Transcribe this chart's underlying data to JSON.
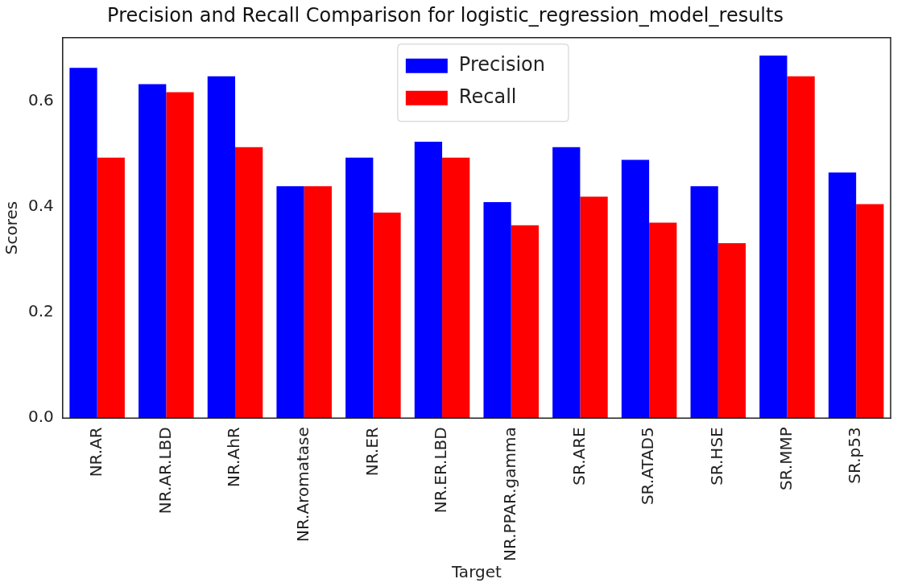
{
  "chart_data": {
    "type": "bar",
    "title": "Precision and Recall Comparison for logistic_regression_model_results",
    "xlabel": "Target",
    "ylabel": "Scores",
    "categories": [
      "NR.AR",
      "NR.AR.LBD",
      "NR.AhR",
      "NR.Aromatase",
      "NR.ER",
      "NR.ER.LBD",
      "NR.PPAR.gamma",
      "SR.ARE",
      "SR.ATAD5",
      "SR.HSE",
      "SR.MMP",
      "SR.p53"
    ],
    "series": [
      {
        "name": "Precision",
        "color": "#0000ff",
        "values": [
          0.663,
          0.632,
          0.647,
          0.439,
          0.493,
          0.523,
          0.409,
          0.513,
          0.489,
          0.439,
          0.686,
          0.465
        ]
      },
      {
        "name": "Recall",
        "color": "#ff0000",
        "values": [
          0.493,
          0.617,
          0.513,
          0.439,
          0.389,
          0.493,
          0.365,
          0.419,
          0.37,
          0.331,
          0.647,
          0.405
        ]
      }
    ],
    "ylim": [
      0,
      0.72
    ],
    "yticks": [
      {
        "value": 0,
        "label": "0.0"
      },
      {
        "value": 0.2,
        "label": "0.2"
      },
      {
        "value": 0.4,
        "label": "0.4"
      },
      {
        "value": 0.6,
        "label": "0.6"
      }
    ],
    "grid": false,
    "legend": "top"
  }
}
